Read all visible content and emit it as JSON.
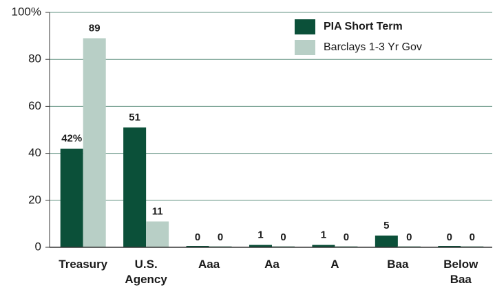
{
  "chart_data": {
    "type": "bar",
    "categories": [
      "Treasury",
      "U.S. Agency",
      "Aaa",
      "Aa",
      "A",
      "Baa",
      "Below Baa"
    ],
    "series": [
      {
        "name": "PIA Short Term",
        "color": "#0b5039",
        "values": [
          42,
          51,
          0,
          1,
          1,
          5,
          0
        ],
        "value_labels": [
          "42%",
          "51",
          "0",
          "1",
          "1",
          "5",
          "0"
        ]
      },
      {
        "name": "Barclays 1-3 Yr Gov",
        "color": "#b8cfc6",
        "values": [
          89,
          11,
          0,
          0,
          0,
          0,
          0
        ]
      }
    ],
    "ylim": [
      0,
      100
    ],
    "yticks": [
      0,
      20,
      40,
      60,
      80,
      {
        "value": 100,
        "label": "100%"
      }
    ],
    "grid": true,
    "legend": "top-right"
  }
}
